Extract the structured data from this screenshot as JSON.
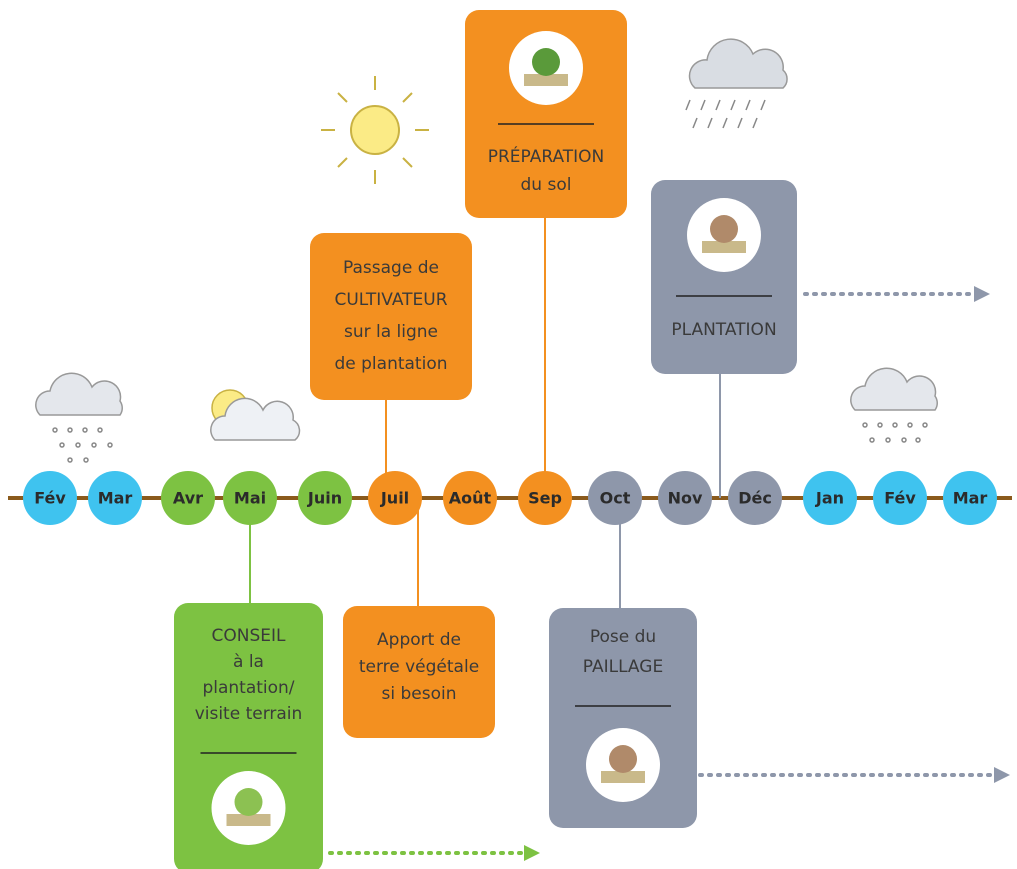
{
  "timeline": {
    "months": [
      {
        "label": "Fév",
        "color": "#3fc3ef"
      },
      {
        "label": "Mar",
        "color": "#3fc3ef"
      },
      {
        "label": "Avr",
        "color": "#7dc242"
      },
      {
        "label": "Mai",
        "color": "#7dc242"
      },
      {
        "label": "Juin",
        "color": "#7dc242"
      },
      {
        "label": "Juil",
        "color": "#f39020"
      },
      {
        "label": "Août",
        "color": "#f39020"
      },
      {
        "label": "Sep",
        "color": "#f39020"
      },
      {
        "label": "Oct",
        "color": "#8e97aa"
      },
      {
        "label": "Nov",
        "color": "#8e97aa"
      },
      {
        "label": "Déc",
        "color": "#8e97aa"
      },
      {
        "label": "Jan",
        "color": "#3fc3ef"
      },
      {
        "label": "Fév",
        "color": "#3fc3ef"
      },
      {
        "label": "Mar",
        "color": "#3fc3ef"
      }
    ]
  },
  "boxes": [
    {
      "lines": [
        "PRÉPARATION",
        "du sol"
      ],
      "color": "#f39020"
    },
    {
      "lines": [
        "Passage de",
        "CULTIVATEUR",
        "sur la ligne",
        "de plantation"
      ],
      "color": "#f39020"
    },
    {
      "lines": [
        "PLANTATION"
      ],
      "color": "#8e97aa"
    },
    {
      "lines": [
        "CONSEIL",
        "à la",
        "plantation/",
        "visite terrain"
      ],
      "color": "#7dc242"
    },
    {
      "lines": [
        "Apport de",
        "terre végétale",
        "si besoin"
      ],
      "color": "#f39020"
    },
    {
      "lines": [
        "Pose du",
        "PAILLAGE"
      ],
      "color": "#8e97aa"
    }
  ]
}
